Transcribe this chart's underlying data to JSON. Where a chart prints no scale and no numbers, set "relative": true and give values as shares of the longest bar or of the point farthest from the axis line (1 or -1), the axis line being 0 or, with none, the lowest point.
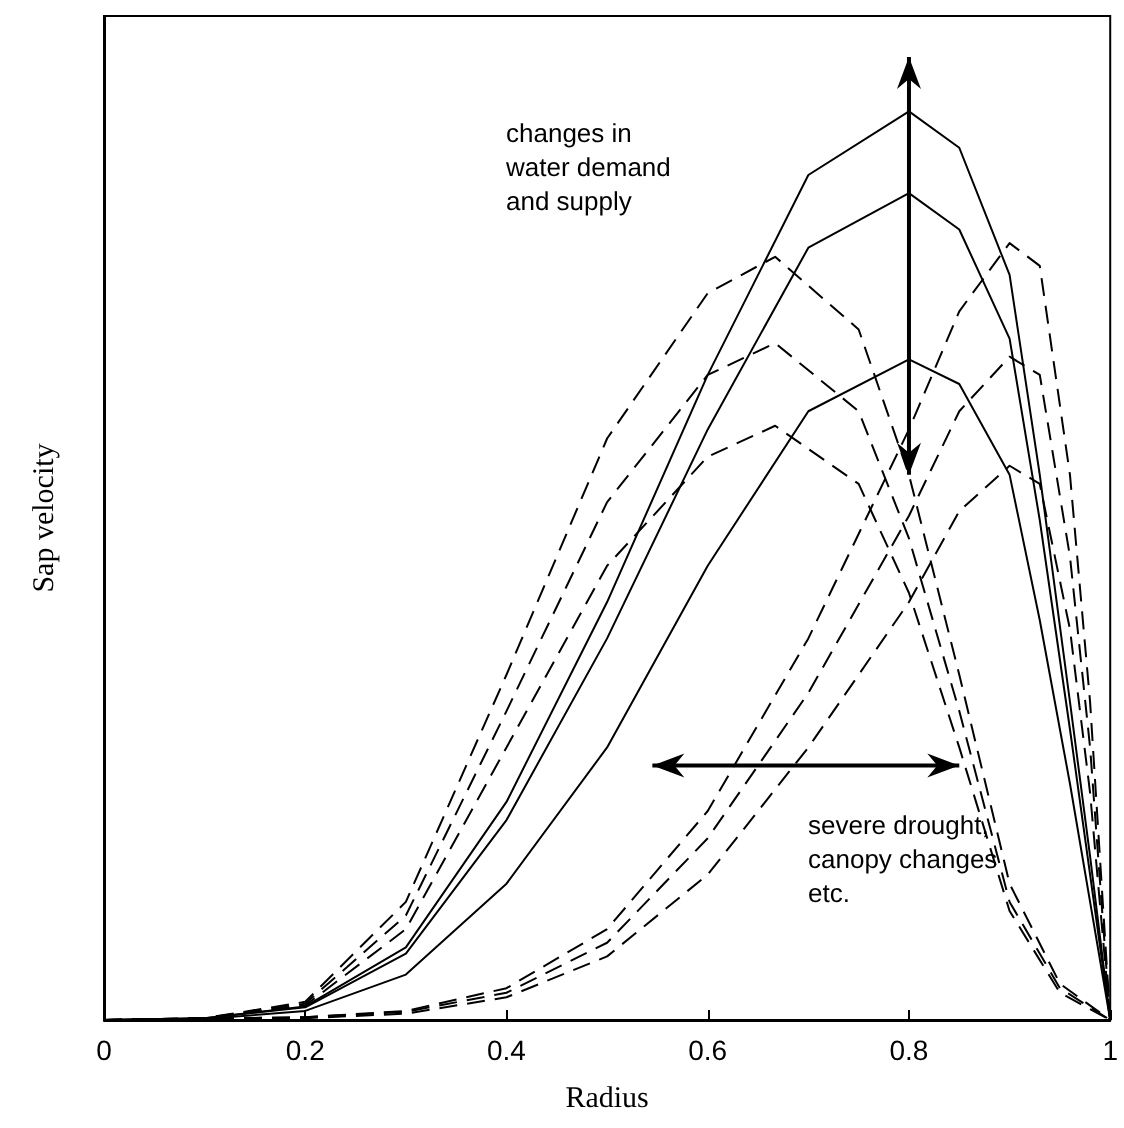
{
  "chart_data": {
    "type": "line",
    "relative": true,
    "xlabel": "Radius",
    "ylabel": "Sap velocity",
    "xlim": [
      0,
      1
    ],
    "xticks": [
      0,
      0.2,
      0.4,
      0.6,
      0.8,
      1
    ],
    "grid": false,
    "annotations": [
      "changes in\nwater demand\nand supply",
      "severe drought,\ncanopy changes\netc."
    ],
    "series": [
      {
        "color": "#000000",
        "line_style": "solid",
        "x": [
          0,
          0.1,
          0.2,
          0.3,
          0.4,
          0.5,
          0.6,
          0.7,
          0.8,
          0.85,
          0.9,
          0.93,
          0.96,
          0.98,
          1
        ],
        "values": [
          0,
          0.002,
          0.015,
          0.08,
          0.24,
          0.46,
          0.71,
          0.93,
          1,
          0.96,
          0.82,
          0.6,
          0.35,
          0.18,
          0
        ]
      },
      {
        "color": "#000000",
        "line_style": "solid",
        "x": [
          0,
          0.1,
          0.2,
          0.3,
          0.4,
          0.5,
          0.6,
          0.7,
          0.8,
          0.85,
          0.9,
          0.93,
          0.96,
          0.98,
          1
        ],
        "values": [
          0,
          0.002,
          0.014,
          0.073,
          0.22,
          0.42,
          0.65,
          0.85,
          0.91,
          0.87,
          0.75,
          0.55,
          0.32,
          0.16,
          0
        ]
      },
      {
        "color": "#000000",
        "line_style": "solid",
        "x": [
          0,
          0.1,
          0.2,
          0.3,
          0.4,
          0.5,
          0.6,
          0.7,
          0.8,
          0.85,
          0.9,
          0.93,
          0.96,
          0.98,
          1
        ],
        "values": [
          0,
          0.001,
          0.01,
          0.05,
          0.15,
          0.3,
          0.5,
          0.67,
          0.727,
          0.7,
          0.6,
          0.44,
          0.26,
          0.13,
          0
        ]
      },
      {
        "color": "#000000",
        "line_style": "dashed",
        "x": [
          0,
          0.1,
          0.2,
          0.3,
          0.4,
          0.5,
          0.6,
          0.667,
          0.75,
          0.8,
          0.85,
          0.9,
          0.95,
          1
        ],
        "values": [
          0,
          0.002,
          0.02,
          0.13,
          0.38,
          0.64,
          0.8,
          0.84,
          0.76,
          0.6,
          0.38,
          0.15,
          0.04,
          0
        ]
      },
      {
        "color": "#000000",
        "line_style": "dashed",
        "x": [
          0,
          0.1,
          0.2,
          0.3,
          0.4,
          0.5,
          0.6,
          0.667,
          0.75,
          0.8,
          0.85,
          0.9,
          0.95,
          1
        ],
        "values": [
          0,
          0.002,
          0.018,
          0.115,
          0.34,
          0.57,
          0.71,
          0.745,
          0.67,
          0.53,
          0.34,
          0.13,
          0.035,
          0
        ]
      },
      {
        "color": "#000000",
        "line_style": "dashed",
        "x": [
          0,
          0.1,
          0.2,
          0.3,
          0.4,
          0.5,
          0.6,
          0.667,
          0.75,
          0.8,
          0.85,
          0.9,
          0.95,
          1
        ],
        "values": [
          0,
          0.002,
          0.016,
          0.1,
          0.3,
          0.5,
          0.62,
          0.654,
          0.59,
          0.47,
          0.3,
          0.12,
          0.03,
          0
        ]
      },
      {
        "color": "#000000",
        "line_style": "dashed",
        "x": [
          0,
          0.2,
          0.3,
          0.4,
          0.5,
          0.6,
          0.7,
          0.8,
          0.85,
          0.9,
          0.93,
          0.96,
          0.98,
          1
        ],
        "values": [
          0,
          0.003,
          0.01,
          0.035,
          0.1,
          0.23,
          0.42,
          0.65,
          0.78,
          0.855,
          0.83,
          0.6,
          0.35,
          0
        ]
      },
      {
        "color": "#000000",
        "line_style": "dashed",
        "x": [
          0,
          0.2,
          0.3,
          0.4,
          0.5,
          0.6,
          0.7,
          0.8,
          0.85,
          0.9,
          0.93,
          0.96,
          0.98,
          1
        ],
        "values": [
          0,
          0.003,
          0.009,
          0.03,
          0.085,
          0.2,
          0.36,
          0.555,
          0.67,
          0.73,
          0.71,
          0.51,
          0.3,
          0
        ]
      },
      {
        "color": "#000000",
        "line_style": "dashed",
        "x": [
          0,
          0.2,
          0.3,
          0.4,
          0.5,
          0.6,
          0.7,
          0.8,
          0.85,
          0.9,
          0.93,
          0.96,
          0.98,
          1
        ],
        "values": [
          0,
          0.002,
          0.007,
          0.025,
          0.07,
          0.16,
          0.3,
          0.46,
          0.56,
          0.61,
          0.59,
          0.43,
          0.25,
          0
        ]
      }
    ]
  }
}
